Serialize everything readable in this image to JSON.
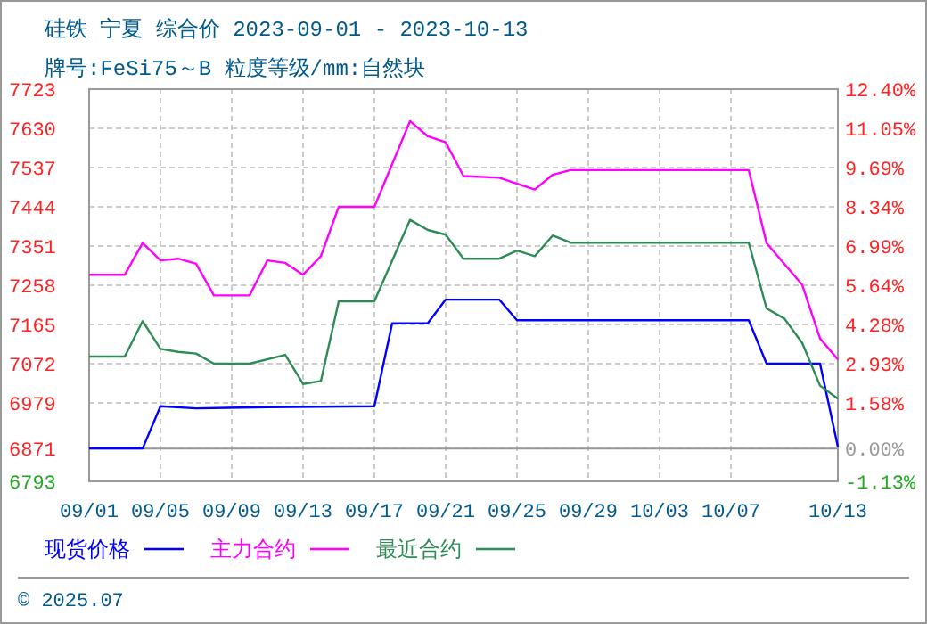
{
  "chart_data": {
    "type": "line",
    "title": "硅铁 宁夏 综合价 2023-09-01 - 2023-10-13",
    "subtitle": "牌号:FeSi75～B 粒度等级/mm:自然块",
    "xlim": [
      "2023-09-01",
      "2023-10-13"
    ],
    "xticks": [
      {
        "value": "2023-09-01",
        "label": "09/01"
      },
      {
        "value": "2023-09-05",
        "label": "09/05"
      },
      {
        "value": "2023-09-09",
        "label": "09/09"
      },
      {
        "value": "2023-09-13",
        "label": "09/13"
      },
      {
        "value": "2023-09-17",
        "label": "09/17"
      },
      {
        "value": "2023-09-21",
        "label": "09/21"
      },
      {
        "value": "2023-09-25",
        "label": "09/25"
      },
      {
        "value": "2023-09-29",
        "label": "09/29"
      },
      {
        "value": "2023-10-03",
        "label": "10/03"
      },
      {
        "value": "2023-10-07",
        "label": "10/07"
      },
      {
        "value": "2023-10-13",
        "label": "10/13"
      }
    ],
    "ylim": [
      6793,
      7723
    ],
    "yticks": [
      6793,
      6871,
      6979,
      7072,
      7165,
      7258,
      7351,
      7444,
      7537,
      7630,
      7723
    ],
    "y2lim": [
      -1.13,
      12.4
    ],
    "y2ticks": [
      {
        "value": -1.13,
        "label": "-1.13%"
      },
      {
        "value": 0,
        "label": "0.00%"
      },
      {
        "value": 1.58,
        "label": "1.58%"
      },
      {
        "value": 2.93,
        "label": "2.93%"
      },
      {
        "value": 4.28,
        "label": "4.28%"
      },
      {
        "value": 5.64,
        "label": "5.64%"
      },
      {
        "value": 6.99,
        "label": "6.99%"
      },
      {
        "value": 8.34,
        "label": "8.34%"
      },
      {
        "value": 9.69,
        "label": "9.69%"
      },
      {
        "value": 11.05,
        "label": "11.05%"
      },
      {
        "value": 12.4,
        "label": "12.40%"
      }
    ],
    "grid": true,
    "legend": "bottom",
    "marker": "none",
    "line_style": "solid",
    "ref_lines": [
      {
        "axis": "y2",
        "value": 0,
        "color": "#999999"
      }
    ],
    "annotations": [
      "© 2025.07"
    ],
    "series": [
      {
        "name": "现货价格",
        "color": "#0000ff",
        "x": [
          "2023-09-01",
          "2023-09-04",
          "2023-09-05",
          "2023-09-07",
          "2023-09-11",
          "2023-09-17",
          "2023-09-18",
          "2023-09-20",
          "2023-09-21",
          "2023-09-24",
          "2023-09-25",
          "2023-10-08",
          "2023-10-09",
          "2023-10-12",
          "2023-10-13"
        ],
        "values": [
          6871,
          6871,
          6971,
          6966,
          6969,
          6971,
          7168,
          7168,
          7224,
          7224,
          7175,
          7175,
          7072,
          7072,
          6875
        ]
      },
      {
        "name": "主力合约",
        "color": "#ff00ff",
        "x": [
          "2023-09-01",
          "2023-09-03",
          "2023-09-04",
          "2023-09-05",
          "2023-09-06",
          "2023-09-07",
          "2023-09-08",
          "2023-09-10",
          "2023-09-11",
          "2023-09-12",
          "2023-09-13",
          "2023-09-14",
          "2023-09-15",
          "2023-09-17",
          "2023-09-19",
          "2023-09-20",
          "2023-09-21",
          "2023-09-22",
          "2023-09-24",
          "2023-09-26",
          "2023-09-27",
          "2023-09-28",
          "2023-10-08",
          "2023-10-09",
          "2023-10-11",
          "2023-10-12",
          "2023-10-13"
        ],
        "values": [
          7283,
          7283,
          7358,
          7317,
          7321,
          7309,
          7234,
          7234,
          7317,
          7311,
          7283,
          7327,
          7444,
          7444,
          7647,
          7611,
          7597,
          7517,
          7513,
          7485,
          7520,
          7531,
          7531,
          7358,
          7259,
          7132,
          7082
        ]
      },
      {
        "name": "最近合约",
        "color": "#2e8b57",
        "x": [
          "2023-09-01",
          "2023-09-03",
          "2023-09-04",
          "2023-09-05",
          "2023-09-06",
          "2023-09-07",
          "2023-09-08",
          "2023-09-10",
          "2023-09-12",
          "2023-09-13",
          "2023-09-14",
          "2023-09-15",
          "2023-09-17",
          "2023-09-19",
          "2023-09-20",
          "2023-09-21",
          "2023-09-22",
          "2023-09-24",
          "2023-09-25",
          "2023-09-26",
          "2023-09-27",
          "2023-09-28",
          "2023-10-08",
          "2023-10-09",
          "2023-10-10",
          "2023-10-11",
          "2023-10-12",
          "2023-10-13"
        ],
        "values": [
          7089,
          7089,
          7173,
          7107,
          7100,
          7096,
          7072,
          7072,
          7093,
          7024,
          7031,
          7220,
          7220,
          7413,
          7389,
          7378,
          7321,
          7321,
          7340,
          7327,
          7376,
          7359,
          7359,
          7203,
          7179,
          7121,
          7020,
          6989
        ]
      }
    ]
  }
}
